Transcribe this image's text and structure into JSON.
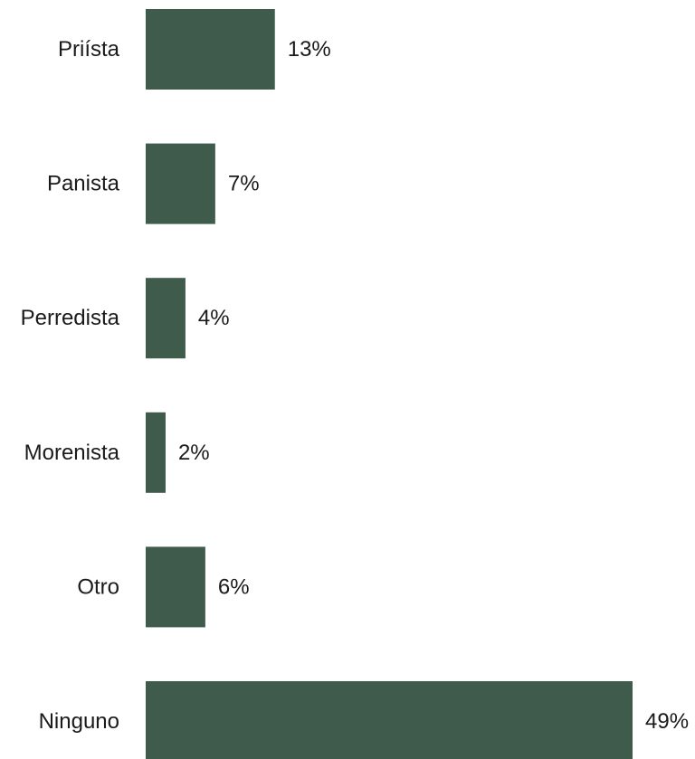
{
  "chart_data": {
    "type": "bar",
    "orientation": "horizontal",
    "categories": [
      "Priísta",
      "Panista",
      "Perredista",
      "Morenista",
      "Otro",
      "Ninguno"
    ],
    "values": [
      13,
      7,
      4,
      2,
      6,
      49
    ],
    "value_labels": [
      "13%",
      "7%",
      "4%",
      "2%",
      "6%",
      "49%"
    ],
    "unit": "%",
    "xlim": [
      0,
      49
    ],
    "grid": false,
    "legend": "none",
    "colors": {
      "bar": "#3f5b4c",
      "text": "#1a1a1a",
      "background": "#ffffff"
    }
  }
}
